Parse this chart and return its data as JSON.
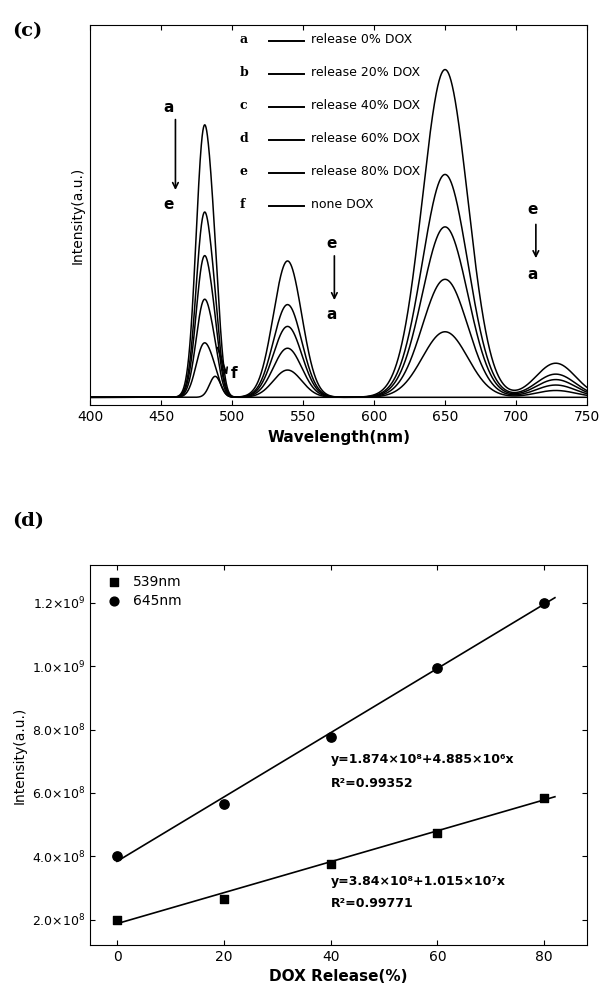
{
  "panel_c_label": "(c)",
  "panel_d_label": "(d)",
  "c_xlabel": "Wavelength(nm)",
  "c_ylabel": "Intensity(a.u.)",
  "c_xlim": [
    400,
    750
  ],
  "c_legend": [
    [
      "a",
      "release 0% DOX"
    ],
    [
      "b",
      "release 20% DOX"
    ],
    [
      "c",
      "release 40% DOX"
    ],
    [
      "d",
      "release 60% DOX"
    ],
    [
      "e",
      "release 80% DOX"
    ],
    [
      "f",
      "none DOX"
    ]
  ],
  "d_xlabel": "DOX Release(%)",
  "d_ylabel": "Intensity(a.u.)",
  "d_x": [
    0,
    20,
    40,
    60,
    80
  ],
  "d_y_539": [
    200000000.0,
    265000000.0,
    375000000.0,
    475000000.0,
    585000000.0
  ],
  "d_y_645": [
    400000000.0,
    565000000.0,
    775000000.0,
    995000000.0,
    1200000000.0
  ],
  "d_eq_upper": "y=1.874×10⁸+4.885×10⁶x",
  "d_r2_upper": "R²=0.99352",
  "d_eq_lower": "y=3.84×10⁸+1.015×10⁷x",
  "d_r2_lower": "R²=0.99771",
  "line_color": "#000000",
  "bg_color": "#ffffff"
}
